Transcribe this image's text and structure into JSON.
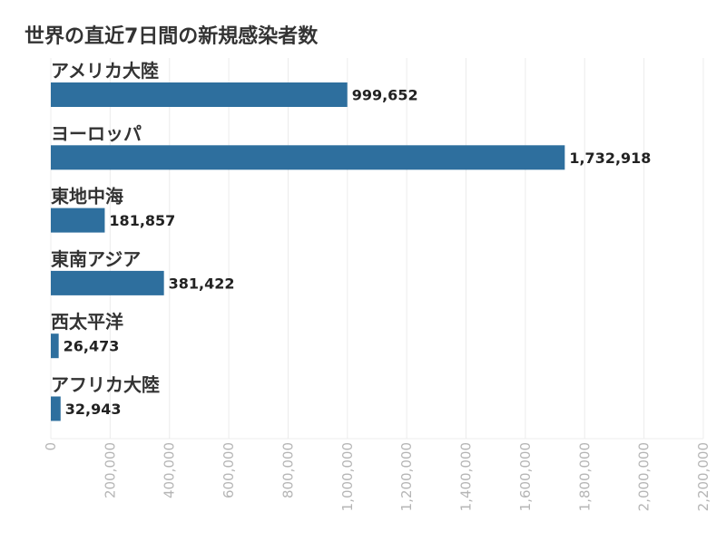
{
  "chart_data": {
    "type": "bar",
    "orientation": "horizontal",
    "title": "世界の直近7日間の新規感染者数",
    "xlabel": "",
    "ylabel": "",
    "categories": [
      "アメリカ大陸",
      "ヨーロッパ",
      "東地中海",
      "東南アジア",
      "西太平洋",
      "アフリカ大陸"
    ],
    "values": [
      999652,
      1732918,
      181857,
      381422,
      26473,
      32943
    ],
    "value_labels": [
      "999,652",
      "1,732,918",
      "181,857",
      "381,422",
      "26,473",
      "32,943"
    ],
    "xlim": [
      0,
      2200000
    ],
    "xticks": [
      0,
      200000,
      400000,
      600000,
      800000,
      1000000,
      1200000,
      1400000,
      1600000,
      1800000,
      2000000,
      2200000
    ],
    "xtick_labels": [
      "0",
      "200,000",
      "400,000",
      "600,000",
      "800,000",
      "1,000,000",
      "1,200,000",
      "1,400,000",
      "1,600,000",
      "1,800,000",
      "2,000,000",
      "2,200,000"
    ],
    "grid": true,
    "legend": "none",
    "bar_color": "#2e6f9e",
    "grid_color": "#ececec",
    "tick_label_color": "#b5b5b5"
  }
}
